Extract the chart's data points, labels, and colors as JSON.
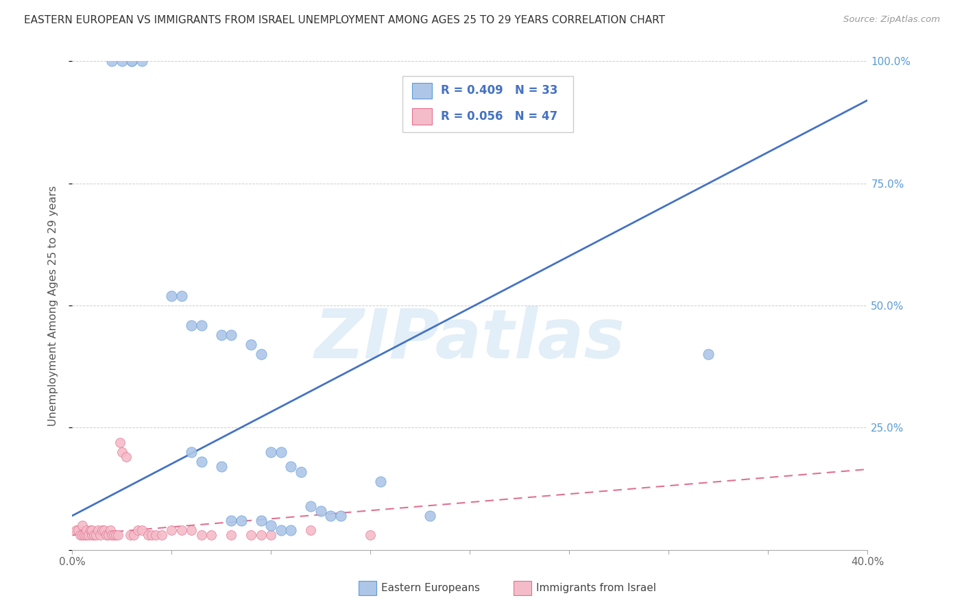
{
  "title": "EASTERN EUROPEAN VS IMMIGRANTS FROM ISRAEL UNEMPLOYMENT AMONG AGES 25 TO 29 YEARS CORRELATION CHART",
  "source": "Source: ZipAtlas.com",
  "ylabel": "Unemployment Among Ages 25 to 29 years",
  "xlim": [
    0.0,
    0.4
  ],
  "ylim": [
    0.0,
    1.0
  ],
  "xticks": [
    0.0,
    0.05,
    0.1,
    0.15,
    0.2,
    0.25,
    0.3,
    0.35,
    0.4
  ],
  "yticks": [
    0.0,
    0.25,
    0.5,
    0.75,
    1.0
  ],
  "xtick_labels_show": [
    "0.0%",
    "",
    "",
    "",
    "",
    "",
    "",
    "",
    "40.0%"
  ],
  "ytick_labels": [
    "",
    "25.0%",
    "50.0%",
    "75.0%",
    "100.0%"
  ],
  "blue_fill_color": "#aec6e8",
  "blue_edge_color": "#5b9bd5",
  "pink_fill_color": "#f4bcc8",
  "pink_edge_color": "#e07090",
  "blue_line_color": "#4472c4",
  "pink_line_color": "#e07090",
  "R_blue": "0.409",
  "N_blue": "33",
  "R_pink": "0.056",
  "N_pink": "47",
  "legend_label_blue": "Eastern Europeans",
  "legend_label_pink": "Immigrants from Israel",
  "watermark": "ZIPatlas",
  "blue_scatter_x": [
    0.02,
    0.025,
    0.03,
    0.03,
    0.035,
    0.05,
    0.055,
    0.06,
    0.065,
    0.075,
    0.08,
    0.09,
    0.095,
    0.1,
    0.105,
    0.11,
    0.115,
    0.12,
    0.125,
    0.13,
    0.135,
    0.06,
    0.065,
    0.08,
    0.085,
    0.095,
    0.1,
    0.105,
    0.11,
    0.075,
    0.155,
    0.18,
    0.32
  ],
  "blue_scatter_y": [
    1.0,
    1.0,
    1.0,
    1.0,
    1.0,
    0.52,
    0.52,
    0.46,
    0.46,
    0.44,
    0.44,
    0.42,
    0.4,
    0.2,
    0.2,
    0.17,
    0.16,
    0.09,
    0.08,
    0.07,
    0.07,
    0.2,
    0.18,
    0.06,
    0.06,
    0.06,
    0.05,
    0.04,
    0.04,
    0.17,
    0.14,
    0.07,
    0.4
  ],
  "pink_scatter_x": [
    0.002,
    0.003,
    0.004,
    0.005,
    0.005,
    0.006,
    0.007,
    0.007,
    0.008,
    0.009,
    0.01,
    0.01,
    0.011,
    0.012,
    0.013,
    0.014,
    0.015,
    0.016,
    0.017,
    0.018,
    0.019,
    0.02,
    0.021,
    0.022,
    0.023,
    0.024,
    0.025,
    0.027,
    0.029,
    0.031,
    0.033,
    0.035,
    0.038,
    0.04,
    0.042,
    0.045,
    0.05,
    0.055,
    0.06,
    0.065,
    0.07,
    0.08,
    0.09,
    0.095,
    0.1,
    0.12,
    0.15
  ],
  "pink_scatter_y": [
    0.04,
    0.04,
    0.03,
    0.03,
    0.05,
    0.03,
    0.03,
    0.04,
    0.03,
    0.04,
    0.03,
    0.04,
    0.03,
    0.03,
    0.04,
    0.03,
    0.04,
    0.04,
    0.03,
    0.03,
    0.04,
    0.03,
    0.03,
    0.03,
    0.03,
    0.22,
    0.2,
    0.19,
    0.03,
    0.03,
    0.04,
    0.04,
    0.03,
    0.03,
    0.03,
    0.03,
    0.04,
    0.04,
    0.04,
    0.03,
    0.03,
    0.03,
    0.03,
    0.03,
    0.03,
    0.04,
    0.03
  ],
  "blue_line_x0": 0.0,
  "blue_line_y0": 0.07,
  "blue_line_x1": 0.4,
  "blue_line_y1": 0.92,
  "pink_line_x0": 0.0,
  "pink_line_y0": 0.03,
  "pink_line_x1": 0.4,
  "pink_line_y1": 0.165,
  "background_color": "#ffffff",
  "grid_color": "#cccccc",
  "title_fontsize": 11,
  "title_color": "#333333",
  "axis_label_color": "#555555",
  "right_axis_color": "#5b9bd5",
  "bottom_label_color": "#444444"
}
